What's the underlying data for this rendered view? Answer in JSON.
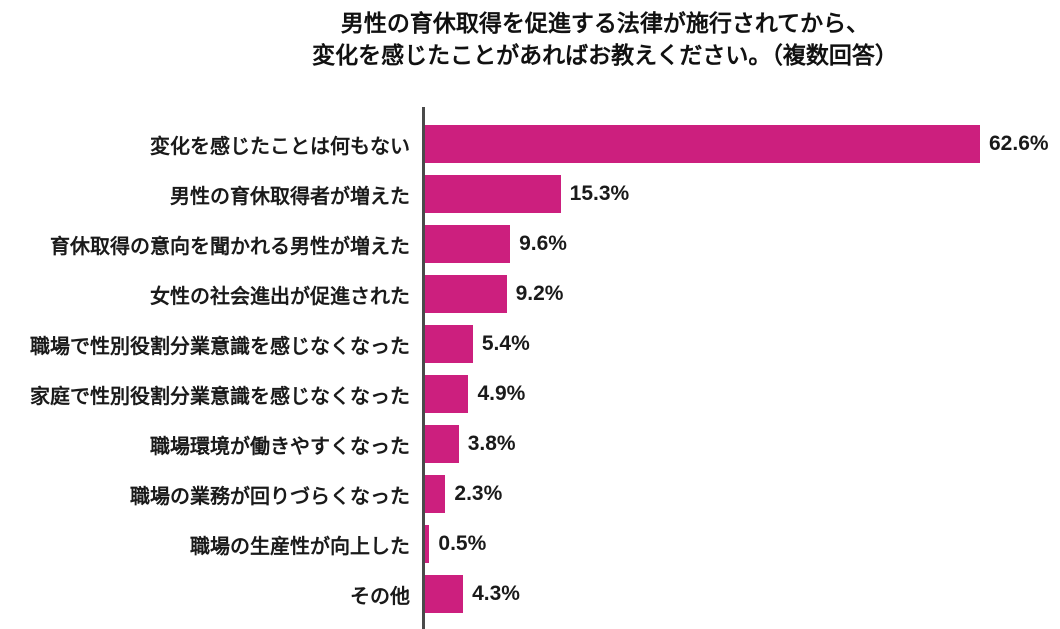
{
  "title": {
    "line1": "男性の育休取得を促進する法律が施行されてから、",
    "line2": "変化を感じたことがあればお教えください。（複数回答）"
  },
  "chart_data": {
    "type": "bar",
    "orientation": "horizontal",
    "title": "男性の育休取得を促進する法律が施行されてから、変化を感じたことがあればお教えください。（複数回答）",
    "categories": [
      "変化を感じたことは何もない",
      "男性の育休取得者が増えた",
      "育休取得の意向を聞かれる男性が増えた",
      "女性の社会進出が促進された",
      "職場で性別役割分業意識を感じなくなった",
      "家庭で性別役割分業意識を感じなくなった",
      "職場環境が働きやすくなった",
      "職場の業務が回りづらくなった",
      "職場の生産性が向上した",
      "その他"
    ],
    "values": [
      62.6,
      15.3,
      9.6,
      9.2,
      5.4,
      4.9,
      3.8,
      2.3,
      0.5,
      4.3
    ],
    "value_labels": [
      "62.6%",
      "15.3%",
      "9.6%",
      "9.2%",
      "5.4%",
      "4.9%",
      "3.8%",
      "2.3%",
      "0.5%",
      "4.3%"
    ],
    "value_suffix": "%",
    "xlabel": "",
    "ylabel": "",
    "xlim": [
      0,
      70
    ],
    "grid": false,
    "legend": false,
    "bar_color": "#CC1F7E",
    "axis_color": "#4a4a4a",
    "text_color": "#1a1a1a"
  }
}
